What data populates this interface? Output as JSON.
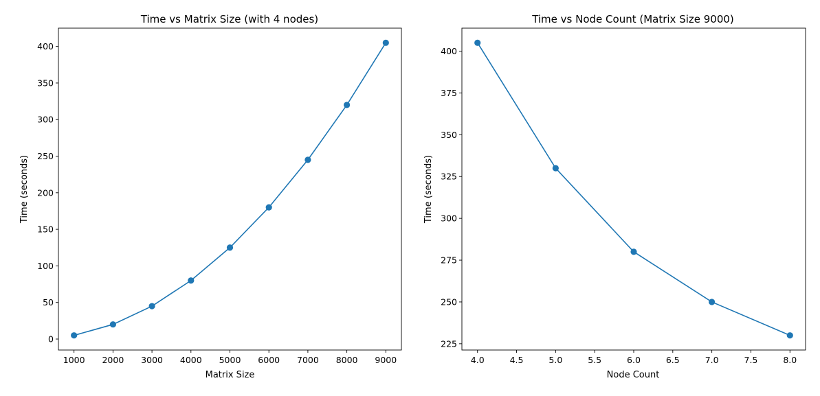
{
  "chart_data": [
    {
      "type": "line",
      "title": "Time vs Matrix Size (with 4 nodes)",
      "xlabel": "Matrix Size",
      "ylabel": "Time (seconds)",
      "x": [
        1000,
        2000,
        3000,
        4000,
        5000,
        6000,
        7000,
        8000,
        9000
      ],
      "series": [
        {
          "values": [
            5,
            20,
            45,
            80,
            125,
            180,
            245,
            320,
            405
          ]
        }
      ],
      "xlim": [
        600,
        9400
      ],
      "ylim": [
        -15,
        425
      ],
      "xticks": [
        1000,
        2000,
        3000,
        4000,
        5000,
        6000,
        7000,
        8000,
        9000
      ],
      "xtick_labels": [
        "1000",
        "2000",
        "3000",
        "4000",
        "5000",
        "6000",
        "7000",
        "8000",
        "9000"
      ],
      "yticks": [
        0,
        50,
        100,
        150,
        200,
        250,
        300,
        350,
        400
      ],
      "ytick_labels": [
        "0",
        "50",
        "100",
        "150",
        "200",
        "250",
        "300",
        "350",
        "400"
      ],
      "marker": "circle",
      "grid": false,
      "color": "#1f77b4"
    },
    {
      "type": "line",
      "title": "Time vs Node Count (Matrix Size 9000)",
      "xlabel": "Node Count",
      "ylabel": "Time (seconds)",
      "x": [
        4,
        5,
        6,
        7,
        8
      ],
      "series": [
        {
          "values": [
            405,
            330,
            280,
            250,
            230
          ]
        }
      ],
      "xlim": [
        3.8,
        8.2
      ],
      "ylim": [
        221.25,
        413.75
      ],
      "xticks": [
        4.0,
        4.5,
        5.0,
        5.5,
        6.0,
        6.5,
        7.0,
        7.5,
        8.0
      ],
      "xtick_labels": [
        "4.0",
        "4.5",
        "5.0",
        "5.5",
        "6.0",
        "6.5",
        "7.0",
        "7.5",
        "8.0"
      ],
      "yticks": [
        225,
        250,
        275,
        300,
        325,
        350,
        375,
        400
      ],
      "ytick_labels": [
        "225",
        "250",
        "275",
        "300",
        "325",
        "350",
        "375",
        "400"
      ],
      "marker": "circle",
      "grid": false,
      "color": "#1f77b4"
    }
  ]
}
